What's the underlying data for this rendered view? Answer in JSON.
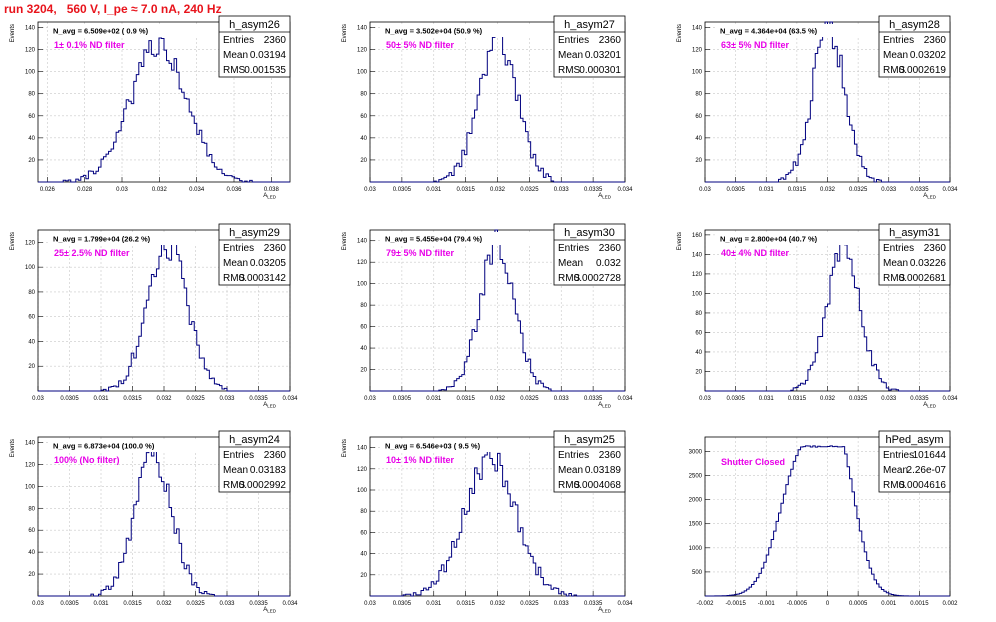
{
  "page_title": "run 3204,   560 V, I_pe ≈ 7.0 nA, 240 Hz",
  "accent_colors": {
    "histogram": "#00007f",
    "annotation": "#e800e8",
    "title": "#e8141c"
  },
  "chart_data": [
    {
      "type": "histogram",
      "name": "h_asym26",
      "stats": {
        "entries_label": "Entries",
        "entries": "2360",
        "mean_label": "Mean",
        "mean": "0.03194",
        "rms_label": "RMS",
        "rms": "0.001535"
      },
      "navg_label": "N_avg = 6.509e+02 ( 0.9 %)",
      "annotation": "1± 0.1% ND filter",
      "ylabel": "Events",
      "xlabel": "A_{LED}",
      "xlim": [
        0.0255,
        0.039
      ],
      "ylim": [
        0,
        145
      ],
      "xticks": [
        0.026,
        0.028,
        0.03,
        0.032,
        0.034,
        0.036,
        0.038
      ],
      "xtick_labels": [
        "0.026",
        "0.028",
        "0.03",
        "0.032",
        "0.034",
        "0.036",
        "0.038"
      ],
      "yticks": [
        20,
        40,
        60,
        80,
        100,
        120,
        140
      ],
      "dist": {
        "mean": 0.03194,
        "sigma": 0.001535,
        "peak": 120,
        "seed": 11
      }
    },
    {
      "type": "histogram",
      "name": "h_asym27",
      "stats": {
        "entries_label": "Entries",
        "entries": "2360",
        "mean_label": "Mean",
        "mean": "0.03201",
        "rms_label": "RMS",
        "rms": "0.000301"
      },
      "navg_label": "N_avg = 3.502e+04 (50.9 %)",
      "annotation": "50± 5% ND filter",
      "ylabel": "Events",
      "xlabel": "A_{LED}",
      "xlim": [
        0.03,
        0.034
      ],
      "ylim": [
        0,
        145
      ],
      "xticks": [
        0.03,
        0.0305,
        0.031,
        0.0315,
        0.032,
        0.0325,
        0.033,
        0.0335,
        0.034
      ],
      "xtick_labels": [
        "0.03",
        "0.0305",
        "0.031",
        "0.0315",
        "0.032",
        "0.0325",
        "0.033",
        "0.0335",
        "0.034"
      ],
      "yticks": [
        20,
        40,
        60,
        80,
        100,
        120,
        140
      ],
      "dist": {
        "mean": 0.03201,
        "sigma": 0.000301,
        "peak": 130,
        "seed": 27
      }
    },
    {
      "type": "histogram",
      "name": "h_asym28",
      "stats": {
        "entries_label": "Entries",
        "entries": "2360",
        "mean_label": "Mean",
        "mean": "0.03202",
        "rms_label": "RMS",
        "rms": "0.0002619"
      },
      "navg_label": "N_avg = 4.364e+04 (63.5 %)",
      "annotation": "63± 5% ND filter",
      "ylabel": "Events",
      "xlabel": "A_{LED}",
      "xlim": [
        0.03,
        0.034
      ],
      "ylim": [
        0,
        145
      ],
      "xticks": [
        0.03,
        0.0305,
        0.031,
        0.0315,
        0.032,
        0.0325,
        0.033,
        0.0335,
        0.034
      ],
      "xtick_labels": [
        "0.03",
        "0.0305",
        "0.031",
        "0.0315",
        "0.032",
        "0.0325",
        "0.033",
        "0.0335",
        "0.034"
      ],
      "yticks": [
        20,
        40,
        60,
        80,
        100,
        120,
        140
      ],
      "dist": {
        "mean": 0.03202,
        "sigma": 0.0002619,
        "peak": 140,
        "seed": 38
      }
    },
    {
      "type": "histogram",
      "name": "h_asym29",
      "stats": {
        "entries_label": "Entries",
        "entries": "2360",
        "mean_label": "Mean",
        "mean": "0.03205",
        "rms_label": "RMS",
        "rms": "0.0003142"
      },
      "navg_label": "N_avg = 1.799e+04 (26.2 %)",
      "annotation": "25± 2.5% ND filter",
      "ylabel": "Events",
      "xlabel": "A_{LED}",
      "xlim": [
        0.03,
        0.034
      ],
      "ylim": [
        0,
        130
      ],
      "xticks": [
        0.03,
        0.0305,
        0.031,
        0.0315,
        0.032,
        0.0325,
        0.033,
        0.0335,
        0.034
      ],
      "xtick_labels": [
        "0.03",
        "0.0305",
        "0.031",
        "0.0315",
        "0.032",
        "0.0325",
        "0.033",
        "0.0335",
        "0.034"
      ],
      "yticks": [
        20,
        40,
        60,
        80,
        100,
        120
      ],
      "dist": {
        "mean": 0.03205,
        "sigma": 0.0003142,
        "peak": 118,
        "seed": 49
      }
    },
    {
      "type": "histogram",
      "name": "h_asym30",
      "stats": {
        "entries_label": "Entries",
        "entries": "2360",
        "mean_label": "Mean",
        "mean": "0.032",
        "rms_label": "RMS",
        "rms": "0.0002728"
      },
      "navg_label": "N_avg = 5.455e+04 (79.4 %)",
      "annotation": "79± 5% ND filter",
      "ylabel": "Events",
      "xlabel": "A_{LED}",
      "xlim": [
        0.03,
        0.034
      ],
      "ylim": [
        0,
        150
      ],
      "xticks": [
        0.03,
        0.0305,
        0.031,
        0.0315,
        0.032,
        0.0325,
        0.033,
        0.0335,
        0.034
      ],
      "xtick_labels": [
        "0.03",
        "0.0305",
        "0.031",
        "0.0315",
        "0.032",
        "0.0325",
        "0.033",
        "0.0335",
        "0.034"
      ],
      "yticks": [
        20,
        40,
        60,
        80,
        100,
        120,
        140
      ],
      "dist": {
        "mean": 0.032,
        "sigma": 0.0002728,
        "peak": 138,
        "seed": 53
      }
    },
    {
      "type": "histogram",
      "name": "h_asym31",
      "stats": {
        "entries_label": "Entries",
        "entries": "2360",
        "mean_label": "Mean",
        "mean": "0.03226",
        "rms_label": "RMS",
        "rms": "0.0002681"
      },
      "navg_label": "N_avg = 2.800e+04 (40.7 %)",
      "annotation": "40± 4% ND filter",
      "ylabel": "Events",
      "xlabel": "A_{LED}",
      "xlim": [
        0.03,
        0.034
      ],
      "ylim": [
        0,
        165
      ],
      "xticks": [
        0.03,
        0.0305,
        0.031,
        0.0315,
        0.032,
        0.0325,
        0.033,
        0.0335,
        0.034
      ],
      "xtick_labels": [
        "0.03",
        "0.0305",
        "0.031",
        "0.0315",
        "0.032",
        "0.0325",
        "0.033",
        "0.0335",
        "0.034"
      ],
      "yticks": [
        20,
        40,
        60,
        80,
        100,
        120,
        140,
        160
      ],
      "dist": {
        "mean": 0.03226,
        "sigma": 0.0002681,
        "peak": 150,
        "seed": 61
      }
    },
    {
      "type": "histogram",
      "name": "h_asym24",
      "stats": {
        "entries_label": "Entries",
        "entries": "2360",
        "mean_label": "Mean",
        "mean": "0.03183",
        "rms_label": "RMS",
        "rms": "0.0002992"
      },
      "navg_label": "N_avg = 6.873e+04 (100.0 %)",
      "annotation": "100% (No filter)",
      "ylabel": "Events",
      "xlabel": "A_{LED}",
      "xlim": [
        0.03,
        0.034
      ],
      "ylim": [
        0,
        145
      ],
      "xticks": [
        0.03,
        0.0305,
        0.031,
        0.0315,
        0.032,
        0.0325,
        0.033,
        0.0335,
        0.034
      ],
      "xtick_labels": [
        "0.03",
        "0.0305",
        "0.031",
        "0.0315",
        "0.032",
        "0.0325",
        "0.033",
        "0.0335",
        "0.034"
      ],
      "yticks": [
        20,
        40,
        60,
        80,
        100,
        120,
        140
      ],
      "dist": {
        "mean": 0.03183,
        "sigma": 0.0002992,
        "peak": 128,
        "seed": 72
      }
    },
    {
      "type": "histogram",
      "name": "h_asym25",
      "stats": {
        "entries_label": "Entries",
        "entries": "2360",
        "mean_label": "Mean",
        "mean": "0.03189",
        "rms_label": "RMS",
        "rms": "0.0004068"
      },
      "navg_label": "N_avg = 6.546e+03 ( 9.5 %)",
      "annotation": "10± 1% ND filter",
      "ylabel": "Events",
      "xlabel": "A_{LED}",
      "xlim": [
        0.03,
        0.034
      ],
      "ylim": [
        0,
        150
      ],
      "xticks": [
        0.03,
        0.0305,
        0.031,
        0.0315,
        0.032,
        0.0325,
        0.033,
        0.0335,
        0.034
      ],
      "xtick_labels": [
        "0.03",
        "0.0305",
        "0.031",
        "0.0315",
        "0.032",
        "0.0325",
        "0.033",
        "0.0335",
        "0.034"
      ],
      "yticks": [
        20,
        40,
        60,
        80,
        100,
        120,
        140
      ],
      "dist": {
        "mean": 0.03189,
        "sigma": 0.0004068,
        "peak": 130,
        "seed": 84
      }
    },
    {
      "type": "histogram",
      "name": "hPed_asym",
      "stats": {
        "entries_label": "Entries",
        "entries": "101644",
        "mean_label": "Mean",
        "mean": "2.26e-07",
        "rms_label": "RMS",
        "rms": "0.0004616"
      },
      "annotation": "Shutter Closed",
      "ylabel": "",
      "xlabel": "",
      "xlim": [
        -0.002,
        0.002
      ],
      "ylim": [
        0,
        3300
      ],
      "xticks": [
        -0.002,
        -0.0015,
        -0.001,
        -0.0005,
        0,
        0.0005,
        0.001,
        0.0015,
        0.002
      ],
      "xtick_labels": [
        "-0.002",
        "-0.0015",
        "-0.001",
        "-0.0005",
        "0",
        "0.0005",
        "0.001",
        "0.0015",
        "0.002"
      ],
      "yticks": [
        500,
        1000,
        1500,
        2000,
        2500,
        3000
      ],
      "dist": {
        "mean": 0.0,
        "sigma": 0.0004616,
        "peak": 3100,
        "seed": 95,
        "double": true
      }
    }
  ]
}
